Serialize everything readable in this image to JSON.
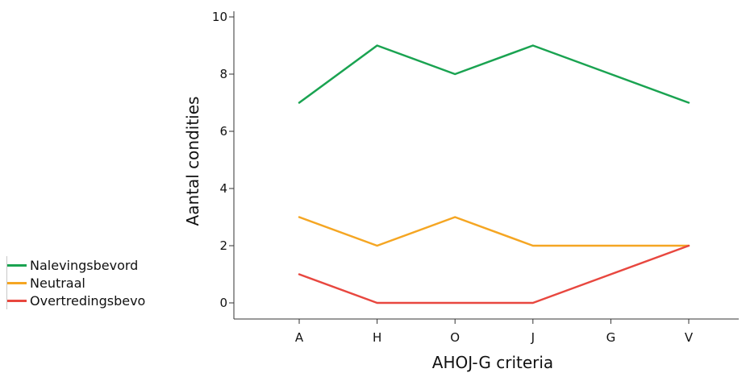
{
  "chart_data": {
    "type": "line",
    "title": "",
    "xlabel": "AHOJ-G criteria",
    "ylabel": "Aantal condities",
    "categories": [
      "A",
      "H",
      "O",
      "J",
      "G",
      "V"
    ],
    "ylim": [
      0,
      10
    ],
    "yticks": [
      "0",
      "2",
      "4",
      "6",
      "8",
      "10"
    ],
    "grid": false,
    "legend_position": "left",
    "series": [
      {
        "name": "Nalevingsbevord",
        "color": "#1aa351",
        "values": [
          7,
          9,
          8,
          9,
          8,
          7
        ]
      },
      {
        "name": "Neutraal",
        "color": "#f5a623",
        "values": [
          3,
          2,
          3,
          2,
          2,
          2
        ]
      },
      {
        "name": "Overtredingsbevo",
        "color": "#e8473f",
        "values": [
          1,
          0,
          0,
          0,
          1,
          2
        ]
      }
    ]
  }
}
